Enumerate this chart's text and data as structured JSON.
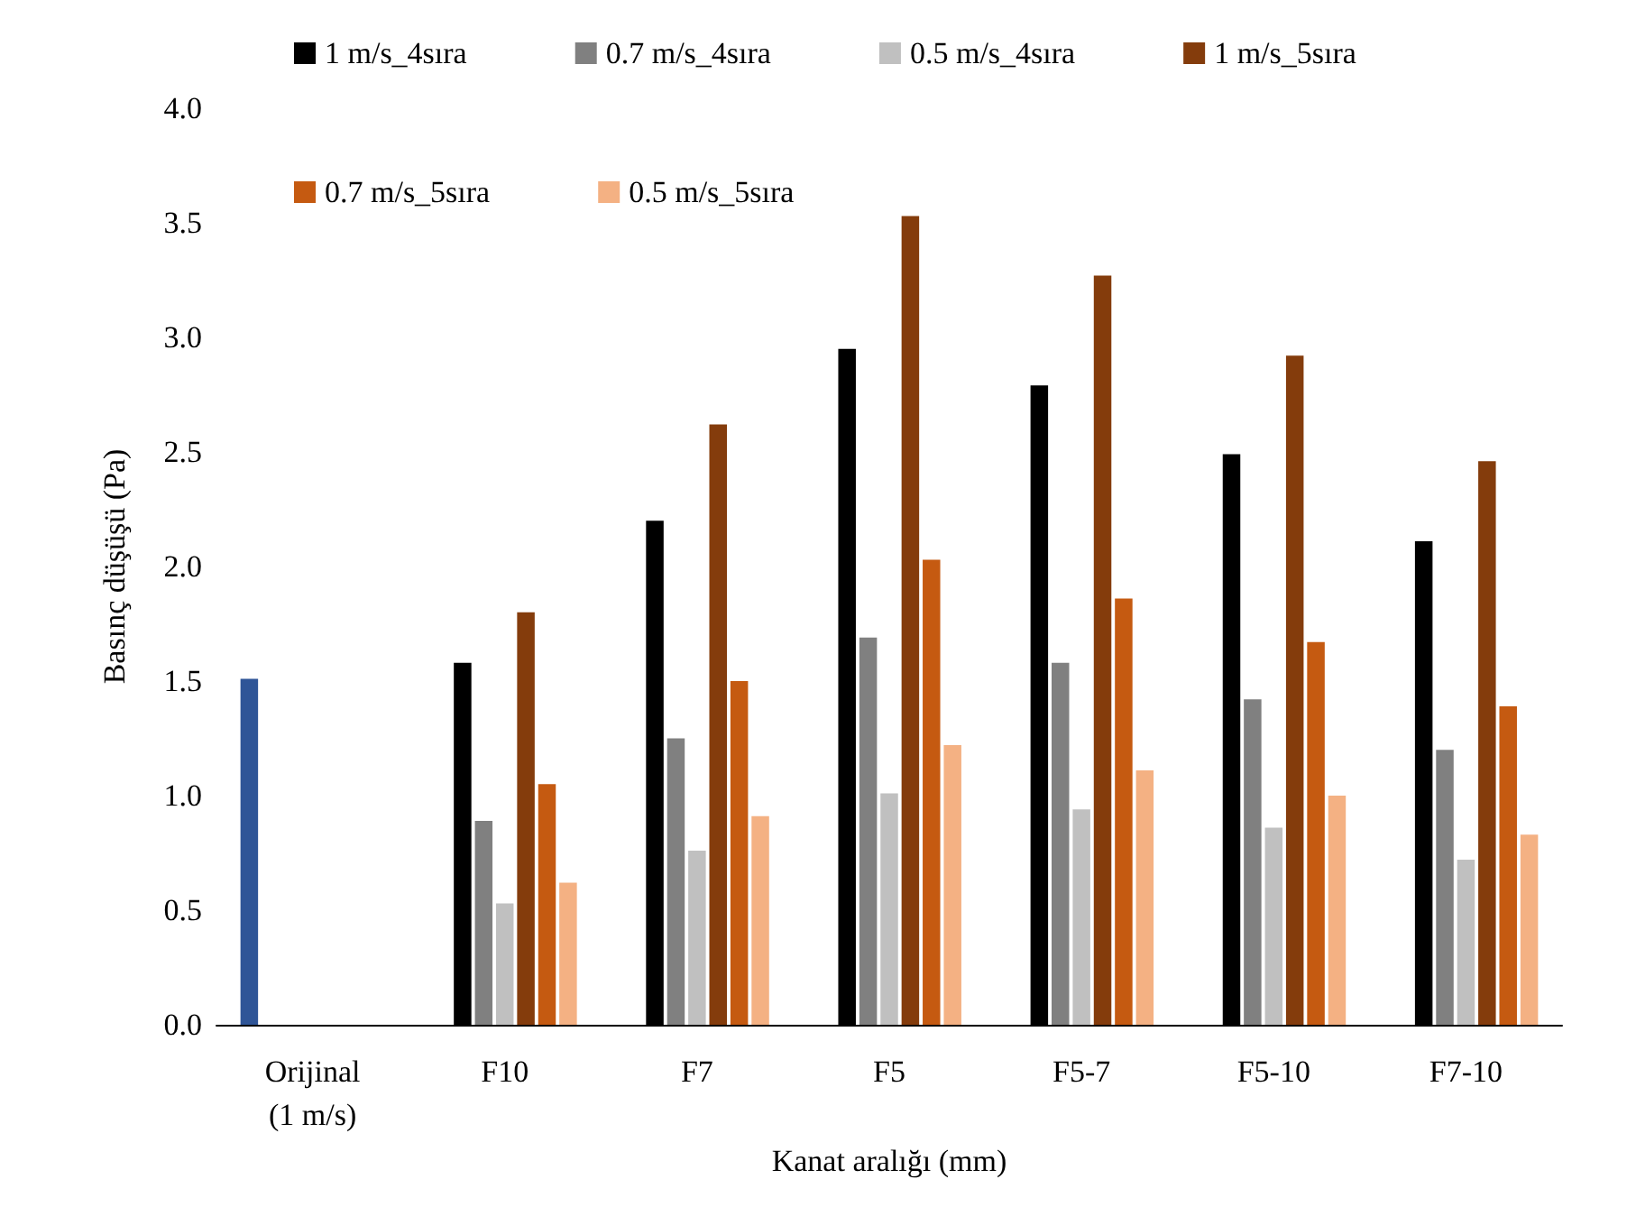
{
  "chart_data": {
    "type": "bar",
    "xlabel": "Kanat aralığı (mm)",
    "ylabel": "Basınç düşüşü (Pa)",
    "categories": [
      "Orijinal\n(1 m/s)",
      "F10",
      "F7",
      "F5",
      "F5-7",
      "F5-10",
      "F7-10"
    ],
    "series": [
      {
        "color": "#2f5597",
        "values": [
          1.51,
          null,
          null,
          null,
          null,
          null,
          null
        ]
      },
      {
        "name": "1 m/s_4sıra",
        "color": "#000000",
        "values": [
          null,
          1.58,
          2.2,
          2.95,
          2.79,
          2.49,
          2.11
        ]
      },
      {
        "name": "0.7 m/s_4sıra",
        "color": "#808080",
        "values": [
          null,
          0.89,
          1.25,
          1.69,
          1.58,
          1.42,
          1.2
        ]
      },
      {
        "name": "0.5 m/s_4sıra",
        "color": "#c0c0c0",
        "values": [
          null,
          0.53,
          0.76,
          1.01,
          0.94,
          0.86,
          0.72
        ]
      },
      {
        "name": "1 m/s_5sıra",
        "color": "#843c0c",
        "values": [
          null,
          1.8,
          2.62,
          3.53,
          3.27,
          2.92,
          2.46
        ]
      },
      {
        "name": "0.7 m/s_5sıra",
        "color": "#c55a11",
        "values": [
          null,
          1.05,
          1.5,
          2.03,
          1.86,
          1.67,
          1.39
        ]
      },
      {
        "name": "0.5 m/s_5sıra",
        "color": "#f4b183",
        "values": [
          null,
          0.62,
          0.91,
          1.22,
          1.11,
          1.0,
          0.83
        ]
      }
    ],
    "ylim": [
      0,
      4
    ],
    "yticks": [
      {
        "value": 0,
        "label": "0.0"
      },
      {
        "value": 0.5,
        "label": "0.5"
      },
      {
        "value": 1,
        "label": "1.0"
      },
      {
        "value": 1.5,
        "label": "1.5"
      },
      {
        "value": 2,
        "label": "2.0"
      },
      {
        "value": 2.5,
        "label": "2.5"
      },
      {
        "value": 3,
        "label": "3.0"
      },
      {
        "value": 3.5,
        "label": "3.5"
      },
      {
        "value": 4,
        "label": "4.0"
      }
    ],
    "grid": false,
    "legend": "top"
  }
}
